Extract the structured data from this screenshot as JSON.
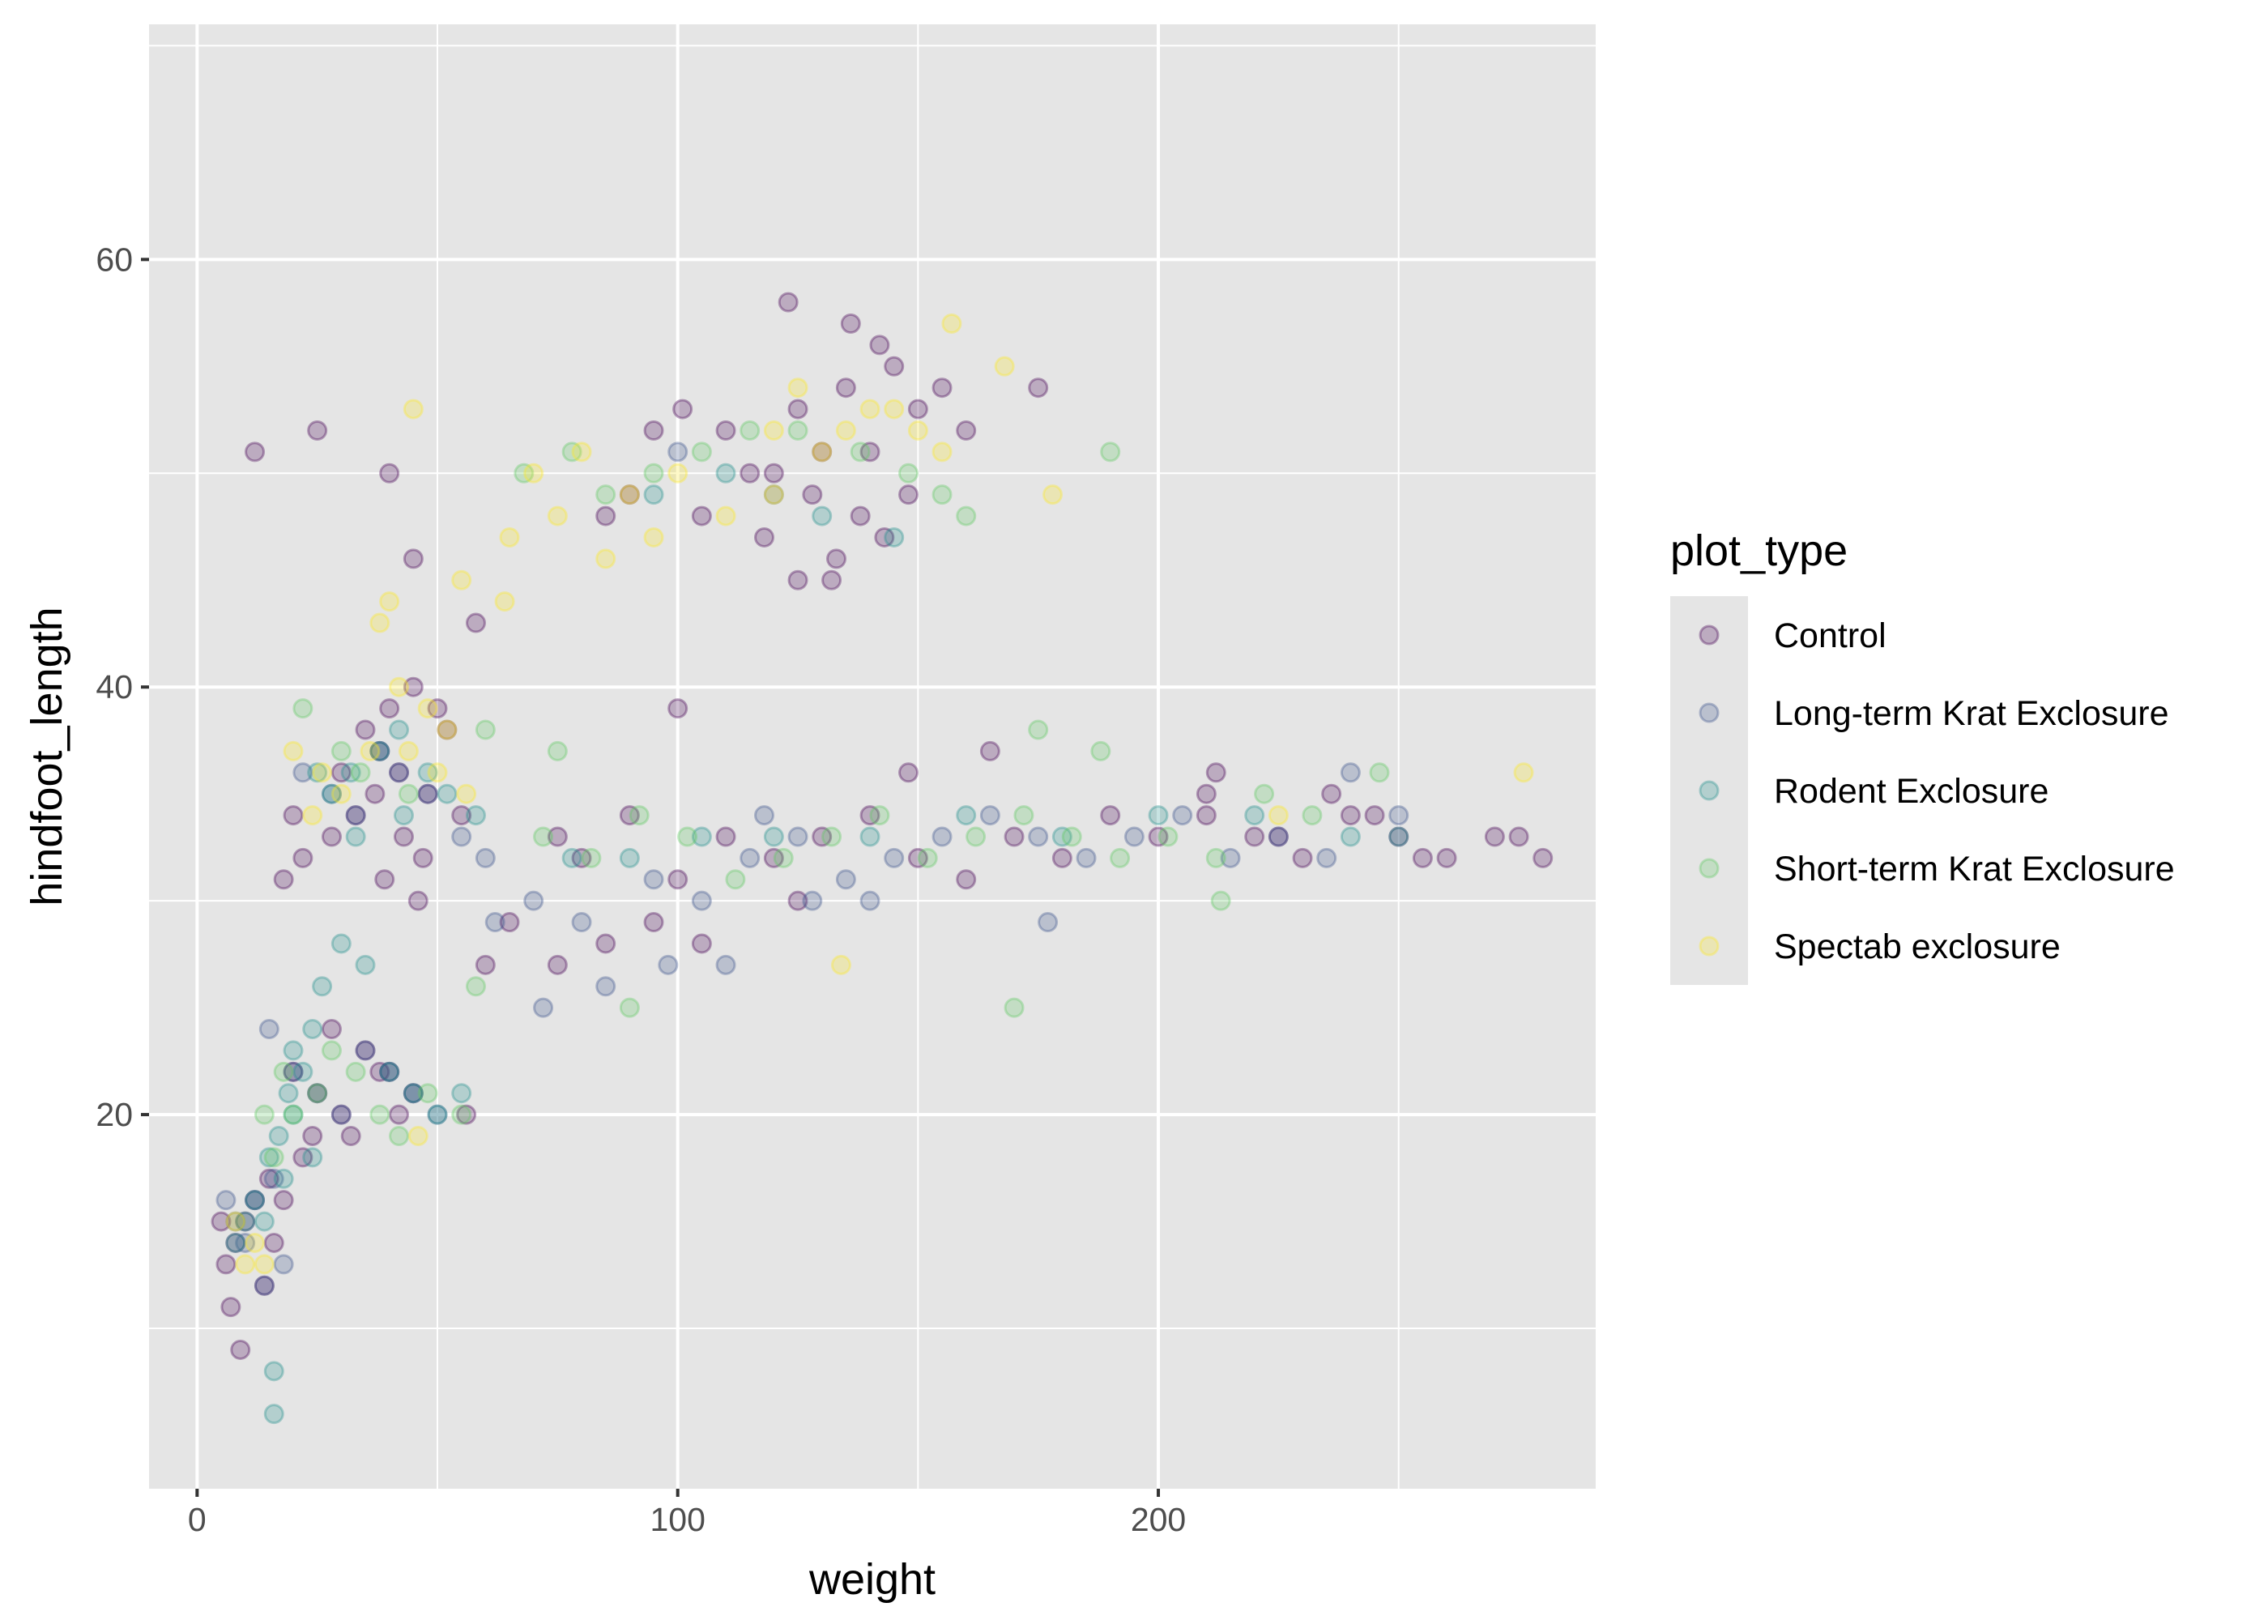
{
  "chart_data": {
    "type": "scatter",
    "xlabel": "weight",
    "ylabel": "hindfoot_length",
    "xlim": [
      -10,
      291
    ],
    "ylim": [
      2.5,
      71
    ],
    "x_major_ticks": [
      0,
      100,
      200
    ],
    "x_minor_grid": [
      50,
      150,
      250
    ],
    "y_major_ticks": [
      20,
      40,
      60
    ],
    "y_minor_grid": [
      10,
      30,
      50,
      70
    ],
    "grid": true,
    "panel_background": "#e5e5e5",
    "grid_color": "#ffffff",
    "point_alpha": 0.25,
    "legend": {
      "title": "plot_type",
      "position": "right",
      "background": "#e5e5e5"
    },
    "series": [
      {
        "name": "Control",
        "color": "#440154",
        "x": [
          12,
          25,
          40,
          123,
          136,
          142,
          175,
          145,
          58,
          101,
          155,
          110,
          125,
          135,
          150,
          160,
          130,
          115,
          140,
          95,
          120,
          128,
          138,
          148,
          105,
          118,
          133,
          143,
          90,
          85,
          125,
          132,
          30,
          35,
          40,
          45,
          50,
          38,
          42,
          48,
          33,
          28,
          22,
          18,
          55,
          47,
          37,
          43,
          52,
          20,
          46,
          39,
          75,
          80,
          90,
          100,
          110,
          120,
          130,
          140,
          150,
          160,
          170,
          180,
          190,
          200,
          210,
          220,
          230,
          240,
          250,
          260,
          270,
          275,
          280,
          212,
          236,
          165,
          148,
          95,
          85,
          60,
          65,
          75,
          105,
          125,
          20,
          25,
          28,
          30,
          35,
          40,
          45,
          22,
          32,
          42,
          15,
          18,
          24,
          38,
          12,
          10,
          8,
          6,
          5,
          7,
          9,
          14,
          16,
          56,
          45,
          100,
          210,
          225,
          245,
          255
        ],
        "y": [
          51,
          52,
          50,
          58,
          57,
          56,
          54,
          55,
          43,
          53,
          54,
          52,
          53,
          54,
          53,
          52,
          51,
          50,
          51,
          52,
          50,
          49,
          48,
          49,
          48,
          47,
          46,
          47,
          49,
          48,
          45,
          45,
          36,
          38,
          39,
          40,
          39,
          37,
          36,
          35,
          34,
          33,
          32,
          31,
          34,
          32,
          35,
          33,
          38,
          34,
          30,
          31,
          33,
          32,
          34,
          31,
          33,
          32,
          33,
          34,
          32,
          31,
          33,
          32,
          34,
          33,
          35,
          33,
          32,
          34,
          33,
          32,
          33,
          33,
          32,
          36,
          35,
          37,
          36,
          29,
          28,
          27,
          29,
          27,
          28,
          30,
          22,
          21,
          24,
          20,
          23,
          22,
          21,
          18,
          19,
          20,
          17,
          16,
          19,
          22,
          16,
          15,
          14,
          13,
          15,
          11,
          9,
          12,
          14,
          20,
          46,
          39,
          34,
          33,
          34,
          32
        ]
      },
      {
        "name": "Long-term Krat Exclosure",
        "color": "#3b528b",
        "x": [
          15,
          20,
          25,
          30,
          35,
          40,
          45,
          50,
          22,
          28,
          33,
          38,
          42,
          48,
          55,
          60,
          70,
          80,
          95,
          105,
          115,
          125,
          135,
          145,
          155,
          165,
          175,
          185,
          195,
          205,
          215,
          225,
          235,
          240,
          250,
          177,
          98,
          110,
          72,
          85,
          62,
          118,
          128,
          140,
          100,
          120,
          10,
          12,
          8,
          14,
          18,
          6,
          16
        ],
        "y": [
          24,
          22,
          21,
          20,
          23,
          22,
          21,
          20,
          36,
          35,
          34,
          37,
          36,
          35,
          33,
          32,
          30,
          29,
          31,
          30,
          32,
          33,
          31,
          32,
          33,
          34,
          33,
          32,
          33,
          34,
          32,
          33,
          32,
          36,
          34,
          29,
          27,
          27,
          25,
          26,
          29,
          34,
          30,
          30,
          51,
          49,
          14,
          16,
          15,
          12,
          13,
          16,
          17
        ]
      },
      {
        "name": "Rodent Exclosure",
        "color": "#21908d",
        "x": [
          16,
          16,
          18,
          20,
          22,
          24,
          26,
          30,
          35,
          40,
          45,
          50,
          55,
          12,
          14,
          10,
          8,
          15,
          17,
          19,
          28,
          32,
          38,
          42,
          48,
          52,
          58,
          25,
          33,
          43,
          78,
          90,
          105,
          120,
          140,
          160,
          180,
          200,
          220,
          240,
          250,
          145,
          130,
          95,
          110,
          20,
          24
        ],
        "y": [
          8,
          6,
          17,
          20,
          22,
          24,
          26,
          28,
          27,
          22,
          21,
          20,
          21,
          16,
          15,
          15,
          14,
          18,
          19,
          21,
          35,
          36,
          37,
          38,
          36,
          35,
          34,
          36,
          33,
          34,
          32,
          32,
          33,
          33,
          33,
          34,
          33,
          34,
          34,
          33,
          33,
          47,
          48,
          49,
          50,
          23,
          18
        ]
      },
      {
        "name": "Short-term Krat Exclosure",
        "color": "#5ec962",
        "x": [
          22,
          30,
          34,
          44,
          60,
          75,
          90,
          190,
          175,
          170,
          188,
          213,
          246,
          160,
          155,
          148,
          138,
          125,
          115,
          105,
          95,
          85,
          78,
          68,
          18,
          20,
          25,
          28,
          33,
          38,
          42,
          48,
          55,
          58,
          72,
          82,
          92,
          102,
          112,
          122,
          132,
          142,
          152,
          162,
          172,
          182,
          192,
          202,
          212,
          222,
          232,
          14,
          16
        ],
        "y": [
          39,
          37,
          36,
          35,
          38,
          37,
          25,
          51,
          38,
          25,
          37,
          30,
          36,
          48,
          49,
          50,
          51,
          52,
          52,
          51,
          50,
          49,
          51,
          50,
          22,
          20,
          21,
          23,
          22,
          20,
          19,
          21,
          20,
          26,
          33,
          32,
          34,
          33,
          31,
          32,
          33,
          34,
          32,
          33,
          34,
          33,
          32,
          33,
          32,
          35,
          34,
          20,
          18
        ]
      },
      {
        "name": "Spectab exclosure",
        "color": "#fde725",
        "x": [
          45,
          40,
          38,
          42,
          48,
          52,
          44,
          50,
          56,
          36,
          64,
          70,
          80,
          90,
          100,
          110,
          120,
          130,
          140,
          150,
          157,
          168,
          178,
          155,
          145,
          135,
          125,
          134,
          225,
          276,
          120,
          95,
          85,
          75,
          65,
          55,
          10,
          12,
          8,
          14,
          46,
          30,
          26,
          20,
          24
        ],
        "y": [
          53,
          44,
          43,
          40,
          39,
          38,
          37,
          36,
          35,
          37,
          44,
          50,
          51,
          49,
          50,
          48,
          52,
          51,
          53,
          52,
          57,
          55,
          49,
          51,
          53,
          52,
          54,
          27,
          34,
          36,
          49,
          47,
          46,
          48,
          47,
          45,
          13,
          14,
          15,
          13,
          19,
          35,
          36,
          37,
          34
        ]
      }
    ]
  }
}
